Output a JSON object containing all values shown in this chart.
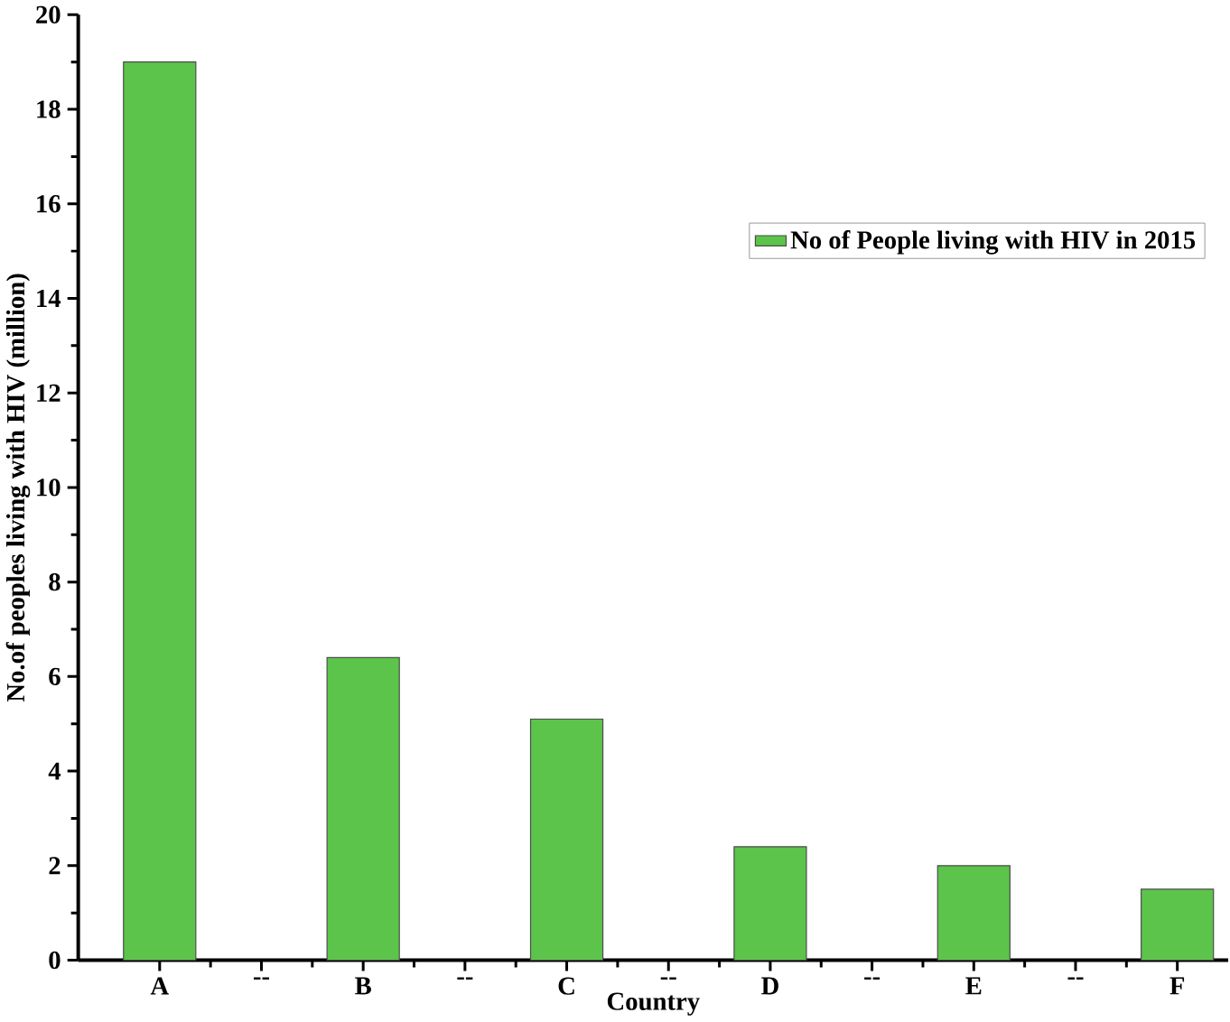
{
  "chart_data": {
    "type": "bar",
    "xlabel": "Country",
    "ylabel": "No.of peoples living with HIV (million)",
    "categories": [
      "A",
      "--",
      "B",
      "--",
      "C",
      "--",
      "D",
      "--",
      "E",
      "--",
      "F"
    ],
    "series": [
      {
        "name": "No of People living with HIV in 2015",
        "color": "#5cc44a",
        "values": [
          19,
          null,
          6.4,
          null,
          5.1,
          null,
          2.4,
          null,
          2.0,
          null,
          1.5
        ]
      }
    ],
    "ylim": [
      0,
      20
    ],
    "yticks": [
      0,
      2,
      4,
      6,
      8,
      10,
      12,
      14,
      16,
      18,
      20
    ],
    "legend": "top right",
    "grid": false
  }
}
